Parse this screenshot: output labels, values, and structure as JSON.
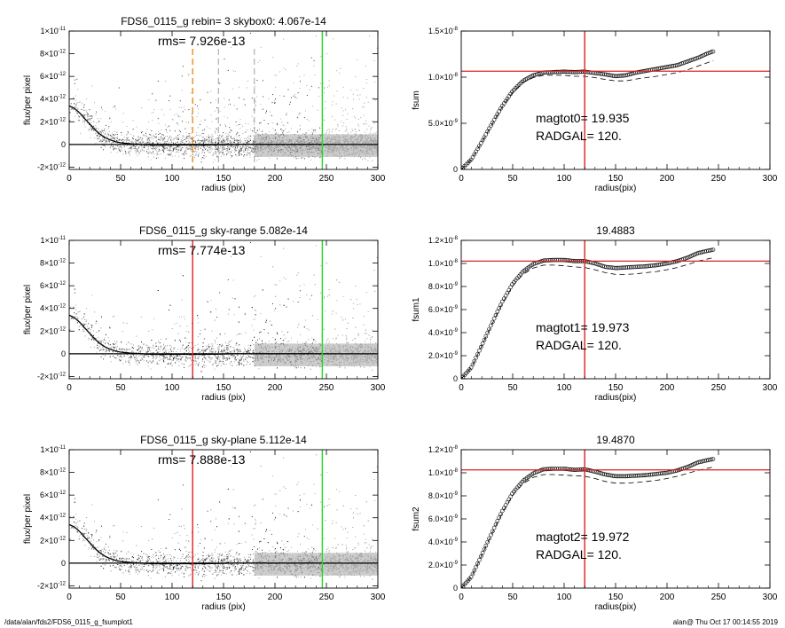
{
  "footer": {
    "path": "/data/alan/fds2/FDS6_0115_g_fsumplot1",
    "user_time": "alan@  Thu Oct 17 00:14:55 2019"
  },
  "chart_data": [
    {
      "type": "scatter",
      "title": "FDS6_0115_g rebin= 3    skybox0:  4.067e-14",
      "annotation": "rms= 7.926e-13",
      "xlabel": "radius (pix)",
      "ylabel": "flux/per pixel",
      "xlim": [
        0,
        300
      ],
      "ylim": [
        -2.2e-12,
        1e-11
      ],
      "x_ticks": [
        "0",
        "50",
        "100",
        "150",
        "200",
        "250",
        "300"
      ],
      "y_ticks": [
        {
          "v": -2e-12,
          "base": "-2×10",
          "exp": "-12"
        },
        {
          "v": 0,
          "base": "0",
          "exp": ""
        },
        {
          "v": 2e-12,
          "base": "2×10",
          "exp": "-12"
        },
        {
          "v": 4e-12,
          "base": "4×10",
          "exp": "-12"
        },
        {
          "v": 6e-12,
          "base": "6×10",
          "exp": "-12"
        },
        {
          "v": 8e-12,
          "base": "8×10",
          "exp": "-12"
        },
        {
          "v": 1e-11,
          "base": "1×10",
          "exp": "-11"
        }
      ],
      "profile": {
        "x": [
          0,
          5,
          10,
          15,
          20,
          25,
          30,
          35,
          40,
          45,
          50,
          60,
          70,
          80,
          100,
          120,
          140,
          160,
          200,
          245
        ],
        "y": [
          3.4e-12,
          3.2e-12,
          2.8e-12,
          2.3e-12,
          1.8e-12,
          1.3e-12,
          9e-13,
          6e-13,
          4e-13,
          2.5e-13,
          1.5e-13,
          5e-14,
          0,
          -5e-14,
          -5e-14,
          -5e-14,
          -3e-14,
          0,
          0,
          0
        ]
      },
      "vlines": [
        {
          "x": 120,
          "color": "#f08c1e",
          "style": "dash"
        },
        {
          "x": 145,
          "color": "#888888",
          "style": "dash"
        },
        {
          "x": 180,
          "color": "#888888",
          "style": "dash"
        },
        {
          "x": 246,
          "color": "#22dd22",
          "style": "solid"
        }
      ],
      "sky_level": 0
    },
    {
      "type": "line",
      "title": "",
      "xlabel": "radius(pix)",
      "ylabel": "fsum",
      "xlim": [
        0,
        300
      ],
      "ylim": [
        0,
        1.5e-08
      ],
      "x_ticks": [
        "0",
        "50",
        "100",
        "150",
        "200",
        "250",
        "300"
      ],
      "y_ticks": [
        {
          "v": 0,
          "base": "0",
          "exp": ""
        },
        {
          "v": 5e-09,
          "base": "5.0×10",
          "exp": "-9"
        },
        {
          "v": 1e-08,
          "base": "1.0×10",
          "exp": "-8"
        },
        {
          "v": 1.5e-08,
          "base": "1.5×10",
          "exp": "-8"
        }
      ],
      "series": [
        {
          "x": [
            0,
            10,
            20,
            30,
            40,
            50,
            60,
            70,
            80,
            90,
            100,
            110,
            120,
            130,
            140,
            150,
            160,
            170,
            180,
            190,
            200,
            210,
            220,
            230,
            240,
            245
          ],
          "y": [
            0,
            1.1e-09,
            3e-09,
            5e-09,
            6.9e-09,
            8.5e-09,
            9.6e-09,
            1.02e-08,
            1.05e-08,
            1.055e-08,
            1.06e-08,
            1.055e-08,
            1.06e-08,
            1.045e-08,
            1.03e-08,
            1.01e-08,
            1.02e-08,
            1.05e-08,
            1.07e-08,
            1.09e-08,
            1.11e-08,
            1.13e-08,
            1.17e-08,
            1.21e-08,
            1.26e-08,
            1.28e-08
          ]
        },
        {
          "x": [
            0,
            10,
            20,
            30,
            40,
            50,
            60,
            70,
            80,
            90,
            100,
            110,
            120,
            130,
            140,
            150,
            160,
            170,
            180,
            190,
            200,
            210,
            220,
            230,
            240,
            245
          ],
          "y": [
            0,
            1.08e-09,
            2.95e-09,
            4.9e-09,
            6.8e-09,
            8.35e-09,
            9.4e-09,
            9.95e-09,
            1.02e-08,
            1.02e-08,
            1.02e-08,
            1.01e-08,
            1.01e-08,
            9.95e-09,
            9.75e-09,
            9.6e-09,
            9.6e-09,
            9.8e-09,
            9.95e-09,
            1.01e-08,
            1.03e-08,
            1.05e-08,
            1.08e-08,
            1.12e-08,
            1.16e-08,
            1.18e-08
          ]
        }
      ],
      "hline": 1.065e-08,
      "vline": 120,
      "annotations": [
        "magtot0=  19.935",
        "RADGAL=    120."
      ]
    },
    {
      "type": "scatter",
      "title": "FDS6_0115_g sky-range  5.082e-14",
      "annotation": "rms= 7.774e-13",
      "xlabel": "radius (pix)",
      "ylabel": "flux/per pixel",
      "xlim": [
        0,
        300
      ],
      "ylim": [
        -2.2e-12,
        1e-11
      ],
      "x_ticks": [
        "0",
        "50",
        "100",
        "150",
        "200",
        "250",
        "300"
      ],
      "y_ticks": [
        {
          "v": -2e-12,
          "base": "-2×10",
          "exp": "-12"
        },
        {
          "v": 0,
          "base": "0",
          "exp": ""
        },
        {
          "v": 2e-12,
          "base": "2×10",
          "exp": "-12"
        },
        {
          "v": 4e-12,
          "base": "4×10",
          "exp": "-12"
        },
        {
          "v": 6e-12,
          "base": "6×10",
          "exp": "-12"
        },
        {
          "v": 8e-12,
          "base": "8×10",
          "exp": "-12"
        },
        {
          "v": 1e-11,
          "base": "1×10",
          "exp": "-11"
        }
      ],
      "profile": {
        "x": [
          0,
          5,
          10,
          15,
          20,
          25,
          30,
          35,
          40,
          45,
          50,
          60,
          70,
          80,
          100,
          120,
          140,
          160,
          200,
          245
        ],
        "y": [
          3.4e-12,
          3.2e-12,
          2.8e-12,
          2.3e-12,
          1.8e-12,
          1.3e-12,
          9e-13,
          6e-13,
          4e-13,
          2.5e-13,
          1.5e-13,
          5e-14,
          0,
          -5e-14,
          -5e-14,
          -5e-14,
          -3e-14,
          0,
          0,
          0
        ]
      },
      "vlines": [
        {
          "x": 120,
          "color": "#dd2222",
          "style": "solid"
        },
        {
          "x": 246,
          "color": "#22dd22",
          "style": "solid"
        }
      ],
      "sky_level": 0
    },
    {
      "type": "line",
      "title": "19.4883",
      "xlabel": "radius(pix)",
      "ylabel": "fsum1",
      "xlim": [
        0,
        300
      ],
      "ylim": [
        0,
        1.2e-08
      ],
      "x_ticks": [
        "0",
        "50",
        "100",
        "150",
        "200",
        "250",
        "300"
      ],
      "y_ticks": [
        {
          "v": 0,
          "base": "0",
          "exp": ""
        },
        {
          "v": 2e-09,
          "base": "2.0×10",
          "exp": "-9"
        },
        {
          "v": 4e-09,
          "base": "4.0×10",
          "exp": "-9"
        },
        {
          "v": 6e-09,
          "base": "6.0×10",
          "exp": "-9"
        },
        {
          "v": 8e-09,
          "base": "8.0×10",
          "exp": "-9"
        },
        {
          "v": 1e-08,
          "base": "1.0×10",
          "exp": "-8"
        },
        {
          "v": 1.2e-08,
          "base": "1.2×10",
          "exp": "-8"
        }
      ],
      "series": [
        {
          "x": [
            0,
            10,
            20,
            30,
            40,
            50,
            60,
            70,
            80,
            90,
            100,
            110,
            120,
            130,
            140,
            150,
            160,
            170,
            180,
            190,
            200,
            210,
            220,
            230,
            240,
            245
          ],
          "y": [
            0,
            1e-09,
            2.9e-09,
            4.85e-09,
            6.7e-09,
            8.25e-09,
            9.3e-09,
            9.95e-09,
            1.025e-08,
            1.03e-08,
            1.03e-08,
            1.02e-08,
            1.02e-08,
            1e-08,
            9.7e-09,
            9.6e-09,
            9.65e-09,
            9.7e-09,
            9.75e-09,
            9.85e-09,
            1e-08,
            1.02e-08,
            1.05e-08,
            1.09e-08,
            1.11e-08,
            1.12e-08
          ]
        },
        {
          "x": [
            0,
            10,
            20,
            30,
            40,
            50,
            60,
            70,
            80,
            90,
            100,
            110,
            120,
            130,
            140,
            150,
            160,
            170,
            180,
            190,
            200,
            210,
            220,
            230,
            240,
            245
          ],
          "y": [
            0,
            9.8e-10,
            2.85e-09,
            4.75e-09,
            6.55e-09,
            8.05e-09,
            9.05e-09,
            9.6e-09,
            9.85e-09,
            9.85e-09,
            9.8e-09,
            9.7e-09,
            9.65e-09,
            9.45e-09,
            9.2e-09,
            9.05e-09,
            9.05e-09,
            9.1e-09,
            9.2e-09,
            9.3e-09,
            9.45e-09,
            9.65e-09,
            9.9e-09,
            1.02e-08,
            1.04e-08,
            1.05e-08
          ]
        }
      ],
      "hline": 1.02e-08,
      "vline": 120,
      "annotations": [
        "magtot1=  19.973",
        "RADGAL=    120."
      ]
    },
    {
      "type": "scatter",
      "title": "FDS6_0115_g sky-plane  5.112e-14",
      "annotation": "rms= 7.888e-13",
      "xlabel": "radius (pix)",
      "ylabel": "flux/per pixel",
      "xlim": [
        0,
        300
      ],
      "ylim": [
        -2.2e-12,
        1e-11
      ],
      "x_ticks": [
        "0",
        "50",
        "100",
        "150",
        "200",
        "250",
        "300"
      ],
      "y_ticks": [
        {
          "v": -2e-12,
          "base": "-2×10",
          "exp": "-12"
        },
        {
          "v": 0,
          "base": "0",
          "exp": ""
        },
        {
          "v": 2e-12,
          "base": "2×10",
          "exp": "-12"
        },
        {
          "v": 4e-12,
          "base": "4×10",
          "exp": "-12"
        },
        {
          "v": 6e-12,
          "base": "6×10",
          "exp": "-12"
        },
        {
          "v": 8e-12,
          "base": "8×10",
          "exp": "-12"
        },
        {
          "v": 1e-11,
          "base": "1×10",
          "exp": "-11"
        }
      ],
      "profile": {
        "x": [
          0,
          5,
          10,
          15,
          20,
          25,
          30,
          35,
          40,
          45,
          50,
          60,
          70,
          80,
          100,
          120,
          140,
          160,
          200,
          245
        ],
        "y": [
          3.4e-12,
          3.2e-12,
          2.8e-12,
          2.3e-12,
          1.8e-12,
          1.3e-12,
          9e-13,
          6e-13,
          4e-13,
          2.5e-13,
          1.5e-13,
          5e-14,
          0,
          -5e-14,
          -5e-14,
          -5e-14,
          -3e-14,
          0,
          0,
          0
        ]
      },
      "vlines": [
        {
          "x": 120,
          "color": "#dd2222",
          "style": "solid"
        },
        {
          "x": 246,
          "color": "#22dd22",
          "style": "solid"
        }
      ],
      "sky_level": 0
    },
    {
      "type": "line",
      "title": "19.4870",
      "xlabel": "radius(pix)",
      "ylabel": "fsum2",
      "xlim": [
        0,
        300
      ],
      "ylim": [
        0,
        1.2e-08
      ],
      "x_ticks": [
        "0",
        "50",
        "100",
        "150",
        "200",
        "250",
        "300"
      ],
      "y_ticks": [
        {
          "v": 0,
          "base": "0",
          "exp": ""
        },
        {
          "v": 2e-09,
          "base": "2.0×10",
          "exp": "-9"
        },
        {
          "v": 4e-09,
          "base": "4.0×10",
          "exp": "-9"
        },
        {
          "v": 6e-09,
          "base": "6.0×10",
          "exp": "-9"
        },
        {
          "v": 8e-09,
          "base": "8.0×10",
          "exp": "-9"
        },
        {
          "v": 1e-08,
          "base": "1.0×10",
          "exp": "-8"
        },
        {
          "v": 1.2e-08,
          "base": "1.2×10",
          "exp": "-8"
        }
      ],
      "series": [
        {
          "x": [
            0,
            10,
            20,
            30,
            40,
            50,
            60,
            70,
            80,
            90,
            100,
            110,
            120,
            130,
            140,
            150,
            160,
            170,
            180,
            190,
            200,
            210,
            220,
            230,
            240,
            245
          ],
          "y": [
            0,
            1e-09,
            2.9e-09,
            4.85e-09,
            6.7e-09,
            8.25e-09,
            9.3e-09,
            9.95e-09,
            1.03e-08,
            1.035e-08,
            1.035e-08,
            1.025e-08,
            1.03e-08,
            1.01e-08,
            9.85e-09,
            9.7e-09,
            9.7e-09,
            9.75e-09,
            9.8e-09,
            9.9e-09,
            1e-08,
            1.02e-08,
            1.05e-08,
            1.09e-08,
            1.11e-08,
            1.12e-08
          ]
        },
        {
          "x": [
            0,
            10,
            20,
            30,
            40,
            50,
            60,
            70,
            80,
            90,
            100,
            110,
            120,
            130,
            140,
            150,
            160,
            170,
            180,
            190,
            200,
            210,
            220,
            230,
            240,
            245
          ],
          "y": [
            0,
            9.8e-10,
            2.85e-09,
            4.75e-09,
            6.55e-09,
            8.05e-09,
            9.05e-09,
            9.6e-09,
            9.85e-09,
            9.85e-09,
            9.8e-09,
            9.75e-09,
            9.7e-09,
            9.5e-09,
            9.25e-09,
            9.1e-09,
            9.1e-09,
            9.15e-09,
            9.25e-09,
            9.35e-09,
            9.5e-09,
            9.7e-09,
            9.95e-09,
            1.02e-08,
            1.04e-08,
            1.05e-08
          ]
        }
      ],
      "hline": 1.025e-08,
      "vline": 120,
      "annotations": [
        "magtot2=  19.972",
        "RADGAL=    120."
      ]
    }
  ]
}
